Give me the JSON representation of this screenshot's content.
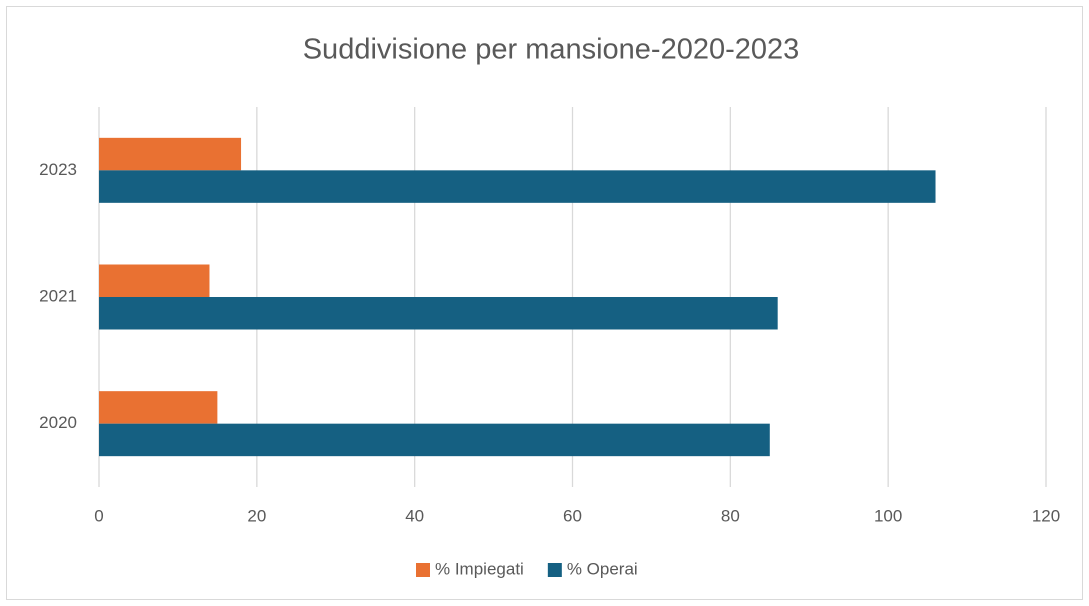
{
  "chart_data": {
    "type": "hbar",
    "title": "Suddivisione per mansione-2020-2023",
    "categories": [
      "2020",
      "2021",
      "2023"
    ],
    "series": [
      {
        "name": "% Impiegati",
        "color": "#e97132",
        "values": [
          15,
          14,
          18
        ]
      },
      {
        "name": "% Operai",
        "color": "#156082",
        "values": [
          85,
          86,
          106
        ]
      }
    ],
    "xlim": [
      0,
      120
    ],
    "xticks": [
      0,
      20,
      40,
      60,
      80,
      100,
      120
    ],
    "grid": true,
    "legend": "bottom"
  }
}
